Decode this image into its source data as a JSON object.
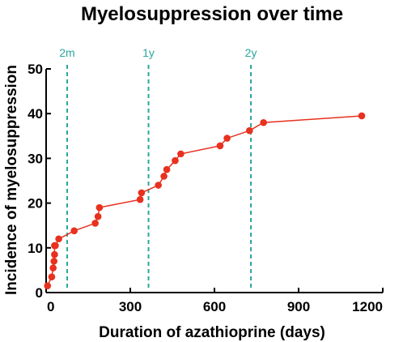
{
  "chart_data": {
    "type": "line",
    "title": "Myelosuppression over time",
    "xlabel": "Duration of azathioprine (days)",
    "ylabel": "Incidence of myelosuppression",
    "xlim": [
      0,
      1200
    ],
    "ylim": [
      0,
      50
    ],
    "x_ticks": [
      0,
      300,
      600,
      900,
      1200
    ],
    "x_tick_labels": [
      "0",
      "300",
      "600",
      "900",
      "1200"
    ],
    "y_ticks": [
      0,
      10,
      20,
      30,
      40,
      50
    ],
    "y_tick_labels": [
      "0",
      "10",
      "20",
      "30",
      "40",
      "50"
    ],
    "grid": false,
    "series": [
      {
        "color": "#e8311f",
        "x": [
          5,
          20,
          25,
          28,
          30,
          30,
          33,
          45,
          100,
          175,
          185,
          190,
          335,
          340,
          400,
          420,
          430,
          460,
          480,
          620,
          645,
          725,
          775,
          1125
        ],
        "y": [
          1.5,
          3.5,
          5.5,
          7,
          8.5,
          10.5,
          10.5,
          12,
          13.8,
          15.5,
          17,
          19,
          20.8,
          22.3,
          24,
          26,
          27.5,
          29.5,
          31,
          32.8,
          34.5,
          36.2,
          38,
          39.5
        ]
      }
    ],
    "reference_lines": [
      {
        "label": "2m",
        "x": 75,
        "color": "#2aa79b"
      },
      {
        "label": "1y",
        "x": 365,
        "color": "#2aa79b"
      },
      {
        "label": "2y",
        "x": 730,
        "color": "#2aa79b"
      }
    ]
  }
}
